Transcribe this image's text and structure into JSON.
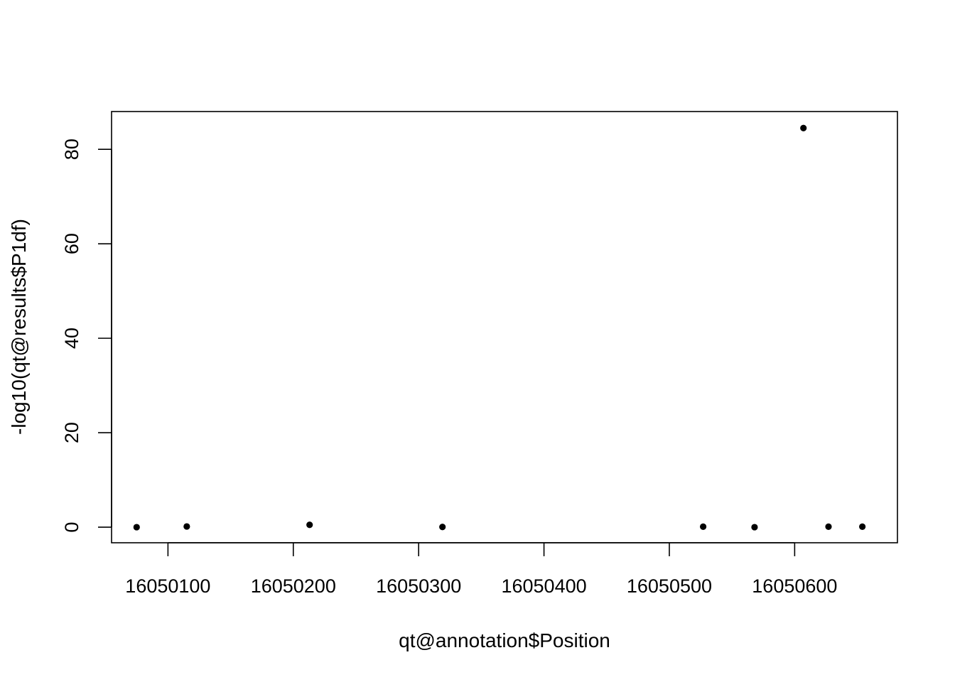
{
  "chart_data": {
    "type": "scatter",
    "title": "",
    "xlabel": "qt@annotation$Position",
    "ylabel": "-log10(qt@results$P1df)",
    "xlim": [
      16050055,
      16050682
    ],
    "ylim": [
      -3.3,
      88.0
    ],
    "xticks": [
      16050100,
      16050200,
      16050300,
      16050400,
      16050500,
      16050600
    ],
    "yticks": [
      0,
      20,
      40,
      60,
      80
    ],
    "grid": false,
    "legend": "none",
    "point_color": "#000000",
    "points": [
      {
        "x": 16050075,
        "y": 0.0
      },
      {
        "x": 16050115,
        "y": 0.15
      },
      {
        "x": 16050213,
        "y": 0.5
      },
      {
        "x": 16050319,
        "y": 0.05
      },
      {
        "x": 16050527,
        "y": 0.1
      },
      {
        "x": 16050568,
        "y": 0.0
      },
      {
        "x": 16050607,
        "y": 84.5
      },
      {
        "x": 16050627,
        "y": 0.1
      },
      {
        "x": 16050654,
        "y": 0.1
      }
    ]
  }
}
